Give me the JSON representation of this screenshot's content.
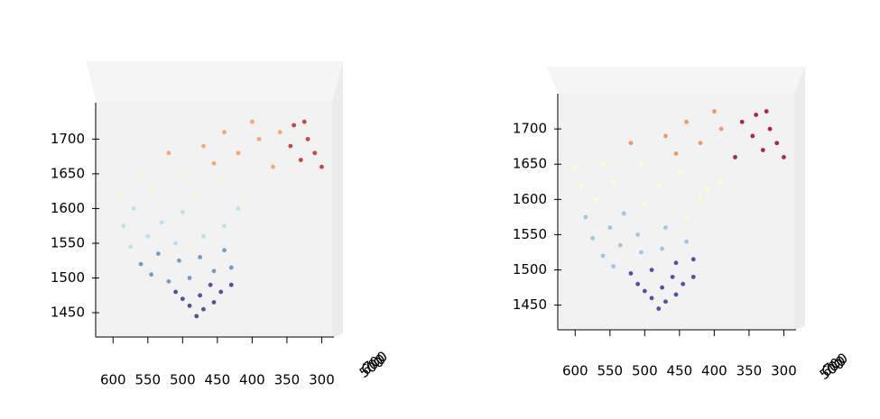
{
  "chart_data": [
    {
      "type": "scatter",
      "xlim": [
        625,
        285
      ],
      "ylim": [
        1415,
        1755
      ],
      "xticks": [
        600,
        550,
        500,
        450,
        400,
        350,
        300
      ],
      "yticks": [
        1450,
        1500,
        1550,
        1600,
        1650,
        1700
      ],
      "zticks": [
        500,
        600,
        700
      ],
      "series": [
        {
          "color": "#313695",
          "x": [
            480,
            470,
            490,
            455,
            500,
            475,
            445,
            510,
            460,
            430
          ],
          "values": [
            1445,
            1455,
            1460,
            1465,
            1470,
            1475,
            1480,
            1480,
            1490,
            1490
          ]
        },
        {
          "color": "#5b8ec2",
          "x": [
            520,
            490,
            545,
            455,
            430,
            560,
            505,
            475,
            535,
            440
          ],
          "values": [
            1495,
            1500,
            1505,
            1510,
            1515,
            1520,
            1525,
            1530,
            1535,
            1540
          ]
        },
        {
          "color": "#b5dcec",
          "x": [
            575,
            510,
            550,
            470,
            585,
            530,
            440,
            570,
            500,
            420
          ],
          "values": [
            1545,
            1550,
            1560,
            1560,
            1575,
            1580,
            1575,
            1600,
            1595,
            1600
          ]
        },
        {
          "color": "#f5f5c8",
          "x": [
            590,
            545,
            480,
            410,
            600,
            560,
            505,
            450,
            390
          ],
          "values": [
            1620,
            1625,
            1620,
            1615,
            1645,
            1650,
            1650,
            1640,
            1625
          ]
        },
        {
          "color": "#f99858",
          "x": [
            520,
            470,
            440,
            420,
            390,
            370,
            455,
            400,
            360
          ],
          "values": [
            1680,
            1690,
            1710,
            1680,
            1700,
            1660,
            1665,
            1725,
            1710
          ]
        },
        {
          "color": "#c3242b",
          "x": [
            340,
            320,
            310,
            300,
            330,
            345,
            325
          ],
          "values": [
            1720,
            1700,
            1680,
            1660,
            1670,
            1690,
            1725
          ]
        }
      ]
    },
    {
      "type": "scatter",
      "xlim": [
        625,
        285
      ],
      "ylim": [
        1415,
        1750
      ],
      "xticks": [
        600,
        550,
        500,
        450,
        400,
        350,
        300
      ],
      "yticks": [
        1450,
        1500,
        1550,
        1600,
        1650,
        1700
      ],
      "zticks": [
        500,
        600,
        700
      ],
      "series": [
        {
          "color": "#313695",
          "x": [
            480,
            470,
            490,
            455,
            500,
            475,
            445,
            510,
            460,
            430,
            520,
            490,
            455,
            430
          ],
          "values": [
            1445,
            1455,
            1460,
            1465,
            1470,
            1475,
            1480,
            1480,
            1490,
            1490,
            1495,
            1500,
            1510,
            1515
          ]
        },
        {
          "color": "#91bfdb",
          "x": [
            545,
            560,
            505,
            475,
            535,
            440,
            575,
            510,
            550,
            470,
            585,
            530
          ],
          "values": [
            1505,
            1520,
            1525,
            1530,
            1535,
            1540,
            1545,
            1550,
            1560,
            1560,
            1575,
            1580
          ]
        },
        {
          "color": "#ffffbf",
          "x": [
            440,
            570,
            500,
            420,
            590,
            545,
            480,
            410,
            600,
            560,
            505,
            450,
            390
          ],
          "values": [
            1575,
            1600,
            1595,
            1600,
            1620,
            1625,
            1620,
            1615,
            1645,
            1650,
            1650,
            1640,
            1625
          ]
        },
        {
          "color": "#f4874f",
          "x": [
            520,
            470,
            440,
            420,
            390,
            455,
            400
          ],
          "values": [
            1680,
            1690,
            1710,
            1680,
            1700,
            1665,
            1725
          ]
        },
        {
          "color": "#a50026",
          "x": [
            370,
            360,
            340,
            320,
            310,
            300,
            330,
            345,
            325
          ],
          "values": [
            1660,
            1710,
            1720,
            1700,
            1680,
            1660,
            1670,
            1690,
            1725
          ]
        }
      ]
    }
  ]
}
